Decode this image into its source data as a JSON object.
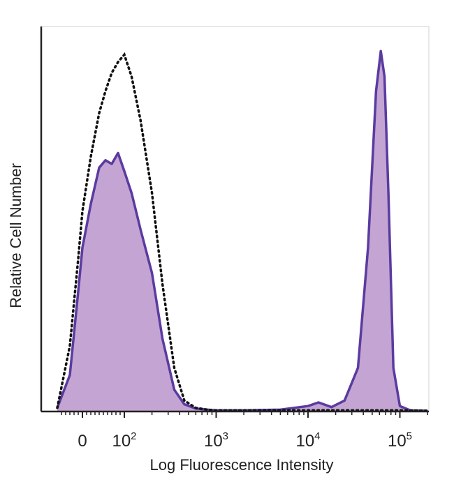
{
  "chart_data": {
    "type": "area",
    "xlabel": "Log Fluorescence Intensity",
    "ylabel": "Relative Cell Number",
    "x_scale": "biexponential",
    "xlim": [
      -60,
      200000
    ],
    "ylim": [
      0,
      100
    ],
    "grid": false,
    "x_ticks": [
      {
        "value": 0,
        "base": "0",
        "exp": ""
      },
      {
        "value": 100,
        "base": "10",
        "exp": "2"
      },
      {
        "value": 1000,
        "base": "10",
        "exp": "3"
      },
      {
        "value": 10000,
        "base": "10",
        "exp": "4"
      },
      {
        "value": 100000,
        "base": "10",
        "exp": "5"
      }
    ],
    "colors": {
      "stained_fill": "#c4a4d2",
      "stained_line": "#5a3ba0",
      "control_line": "#111111"
    },
    "series": [
      {
        "style": "filled-solid",
        "x": [
          -60,
          -30,
          -10,
          0,
          20,
          40,
          55,
          70,
          85,
          100,
          120,
          150,
          200,
          260,
          350,
          450,
          600,
          800,
          1000,
          1500,
          2000,
          3000,
          5000,
          7000,
          10000,
          13000,
          18000,
          25000,
          35000,
          45000,
          55000,
          62000,
          68000,
          75000,
          85000,
          100000,
          130000,
          200000
        ],
        "y": [
          1,
          10,
          33,
          45,
          57,
          67,
          69,
          68,
          71,
          66,
          60,
          50,
          38,
          20,
          6,
          2,
          0.8,
          0.5,
          0.3,
          0.3,
          0.3,
          0.4,
          0.5,
          1,
          1.5,
          2.5,
          1.2,
          3,
          12,
          45,
          88,
          99,
          92,
          60,
          12,
          1.5,
          0.3,
          0.2
        ]
      },
      {
        "style": "dotted",
        "x": [
          -60,
          -30,
          -10,
          0,
          20,
          40,
          55,
          70,
          85,
          100,
          120,
          150,
          200,
          260,
          350,
          450,
          600,
          800,
          1000,
          2000,
          5000,
          10000,
          20000,
          40000,
          70000,
          100000,
          200000
        ],
        "y": [
          1,
          18,
          42,
          55,
          70,
          82,
          88,
          93,
          96,
          98,
          92,
          80,
          60,
          35,
          12,
          3,
          1,
          0.5,
          0.3,
          0.3,
          0.3,
          0.3,
          0.3,
          0.3,
          0.3,
          0.3,
          0.2
        ]
      }
    ]
  }
}
